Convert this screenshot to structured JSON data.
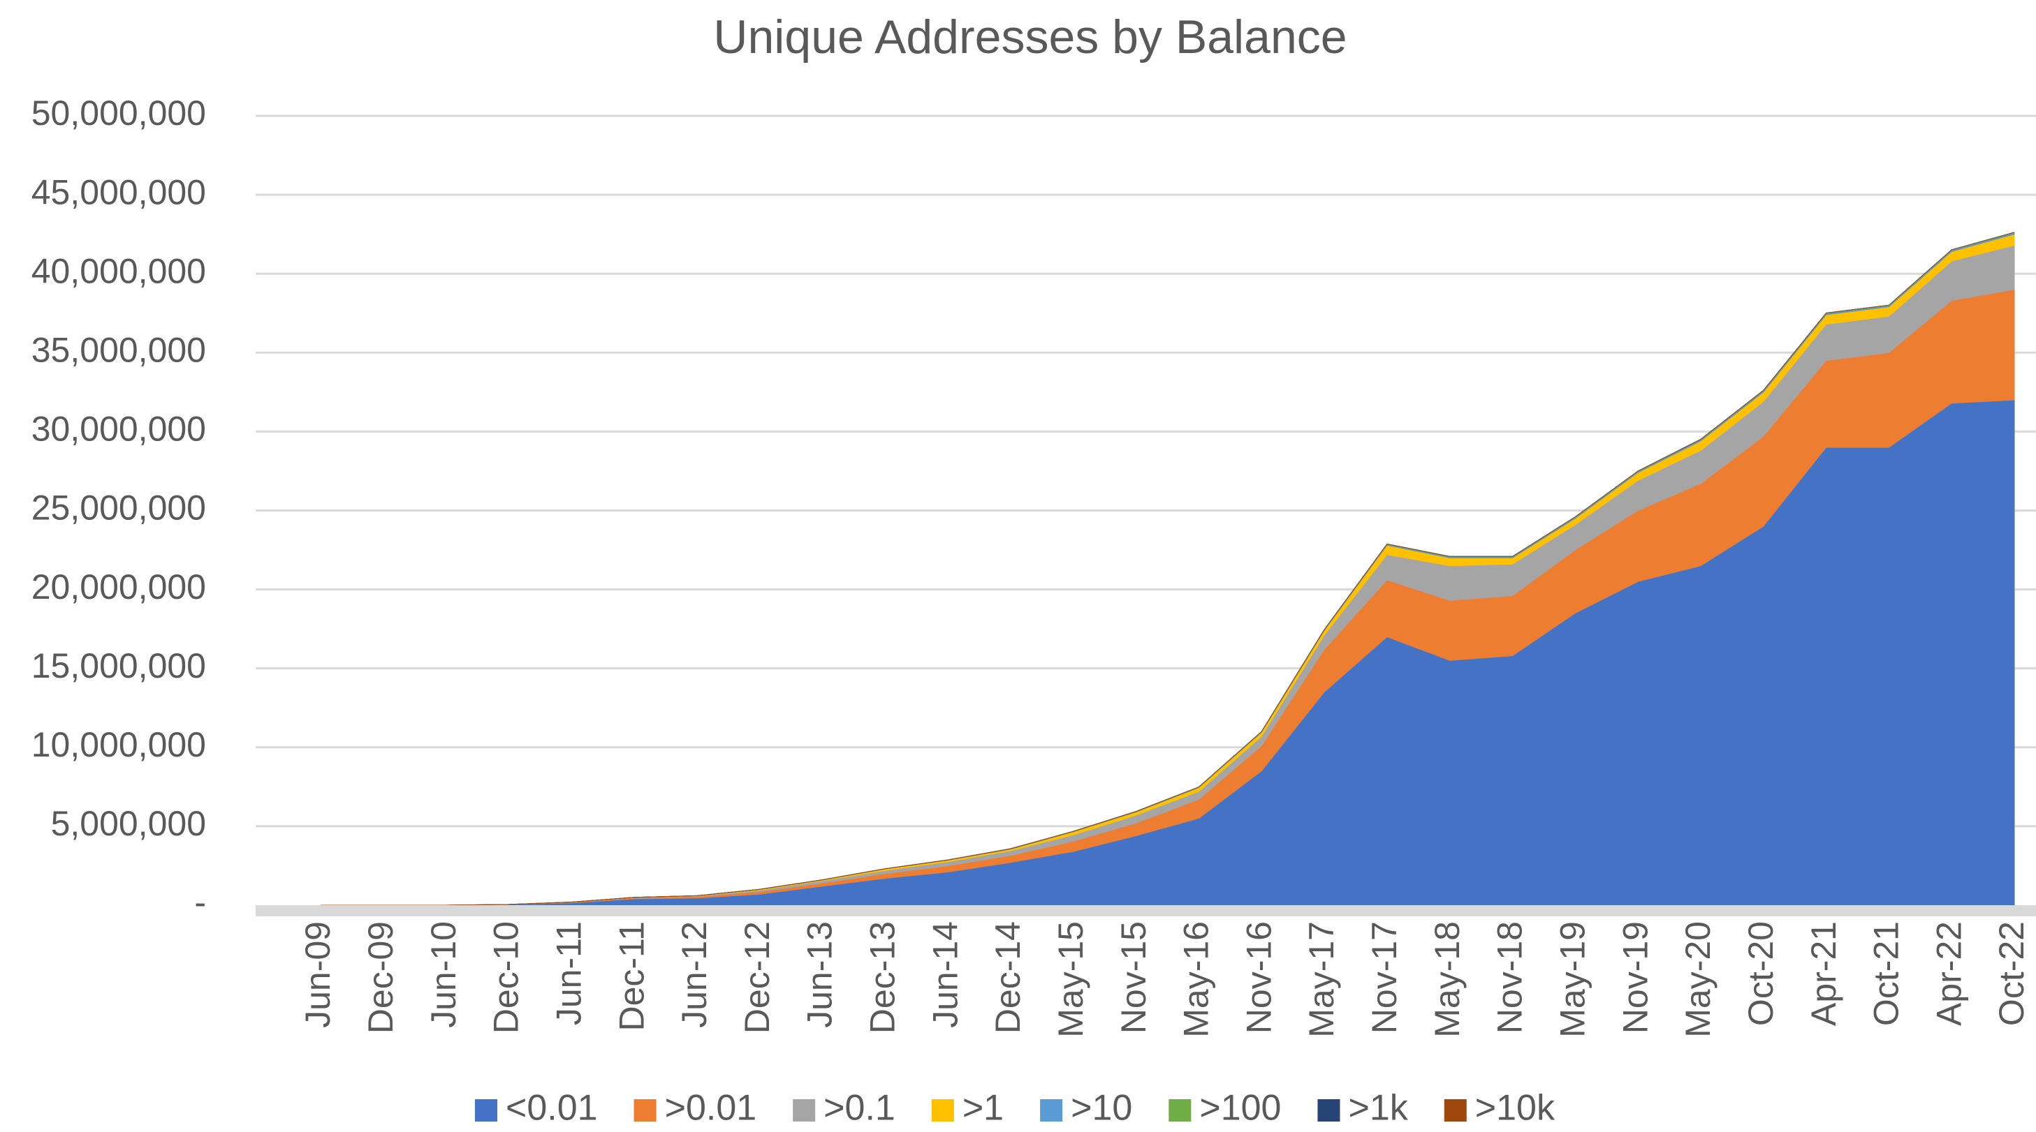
{
  "chart_data": {
    "type": "stacked-area",
    "title": "Unique Addresses by Balance",
    "categories": [
      "Jun-09",
      "Dec-09",
      "Jun-10",
      "Dec-10",
      "Jun-11",
      "Dec-11",
      "Jun-12",
      "Dec-12",
      "Jun-13",
      "Dec-13",
      "Jun-14",
      "Dec-14",
      "May-15",
      "Nov-15",
      "May-16",
      "Nov-16",
      "May-17",
      "Nov-17",
      "May-18",
      "Nov-18",
      "May-19",
      "Nov-19",
      "May-20",
      "Oct-20",
      "Apr-21",
      "Oct-21",
      "Apr-22",
      "Oct-22"
    ],
    "series": [
      {
        "name": "<0.01",
        "color": "#4472c4",
        "values": [
          0,
          0,
          0,
          30000,
          150000,
          400000,
          450000,
          700000,
          1200000,
          1700000,
          2100000,
          2700000,
          3400000,
          4400000,
          5500000,
          8500000,
          13500000,
          17000000,
          15500000,
          15800000,
          18500000,
          20500000,
          21500000,
          24000000,
          29000000,
          29000000,
          31800000,
          32000000
        ]
      },
      {
        "name": ">0.01",
        "color": "#ed7d31",
        "values": [
          0,
          0,
          0,
          10000,
          30000,
          60000,
          100000,
          150000,
          200000,
          300000,
          400000,
          450000,
          650000,
          800000,
          1200000,
          1600000,
          2700000,
          3600000,
          3800000,
          3800000,
          4000000,
          4500000,
          5200000,
          5700000,
          5500000,
          6000000,
          6500000,
          7000000
        ]
      },
      {
        "name": ">0.1",
        "color": "#a5a5a5",
        "values": [
          0,
          0,
          0,
          10000,
          10000,
          30000,
          40000,
          100000,
          150000,
          200000,
          250000,
          300000,
          400000,
          500000,
          500000,
          600000,
          900000,
          1600000,
          2200000,
          2000000,
          1600000,
          1900000,
          2100000,
          2200000,
          2300000,
          2300000,
          2500000,
          2800000
        ]
      },
      {
        "name": ">1",
        "color": "#ffc000",
        "values": [
          0,
          0,
          0,
          0,
          10000,
          10000,
          10000,
          50000,
          50000,
          100000,
          100000,
          100000,
          200000,
          200000,
          250000,
          250000,
          300000,
          600000,
          500000,
          400000,
          400000,
          500000,
          600000,
          600000,
          600000,
          600000,
          600000,
          700000
        ]
      },
      {
        "name": ">10",
        "color": "#5b9bd5",
        "values": [
          0,
          0,
          0,
          0,
          0,
          0,
          0,
          10000,
          10000,
          10000,
          20000,
          20000,
          20000,
          30000,
          30000,
          40000,
          50000,
          60000,
          70000,
          70000,
          80000,
          80000,
          90000,
          90000,
          90000,
          90000,
          100000,
          100000
        ]
      },
      {
        "name": ">100",
        "color": "#70ad47",
        "values": [
          0,
          0,
          0,
          0,
          0,
          0,
          0,
          0,
          0,
          0,
          0,
          10000,
          10000,
          10000,
          10000,
          10000,
          10000,
          20000,
          20000,
          20000,
          20000,
          20000,
          20000,
          20000,
          20000,
          20000,
          20000,
          20000
        ]
      },
      {
        "name": ">1k",
        "color": "#264478",
        "values": [
          0,
          0,
          0,
          0,
          0,
          0,
          0,
          0,
          0,
          0,
          0,
          0,
          0,
          0,
          0,
          0,
          0,
          2000,
          2000,
          2000,
          2000,
          2000,
          2000,
          2000,
          2000,
          2000,
          2000,
          2000
        ]
      },
      {
        "name": ">10k",
        "color": "#9e480e",
        "values": [
          0,
          0,
          0,
          0,
          0,
          0,
          0,
          0,
          0,
          0,
          0,
          0,
          0,
          0,
          0,
          0,
          0,
          100,
          100,
          100,
          100,
          100,
          100,
          100,
          100,
          100,
          100,
          100
        ]
      }
    ],
    "ylim": [
      0,
      50000000
    ],
    "yticks": [
      {
        "value": 0,
        "label": "-"
      },
      {
        "value": 5000000,
        "label": "5,000,000"
      },
      {
        "value": 10000000,
        "label": "10,000,000"
      },
      {
        "value": 15000000,
        "label": "15,000,000"
      },
      {
        "value": 20000000,
        "label": "20,000,000"
      },
      {
        "value": 25000000,
        "label": "25,000,000"
      },
      {
        "value": 30000000,
        "label": "30,000,000"
      },
      {
        "value": 35000000,
        "label": "35,000,000"
      },
      {
        "value": 40000000,
        "label": "40,000,000"
      },
      {
        "value": 45000000,
        "label": "45,000,000"
      },
      {
        "value": 50000000,
        "label": "50,000,000"
      }
    ],
    "grid": true,
    "legend": "bottom"
  }
}
